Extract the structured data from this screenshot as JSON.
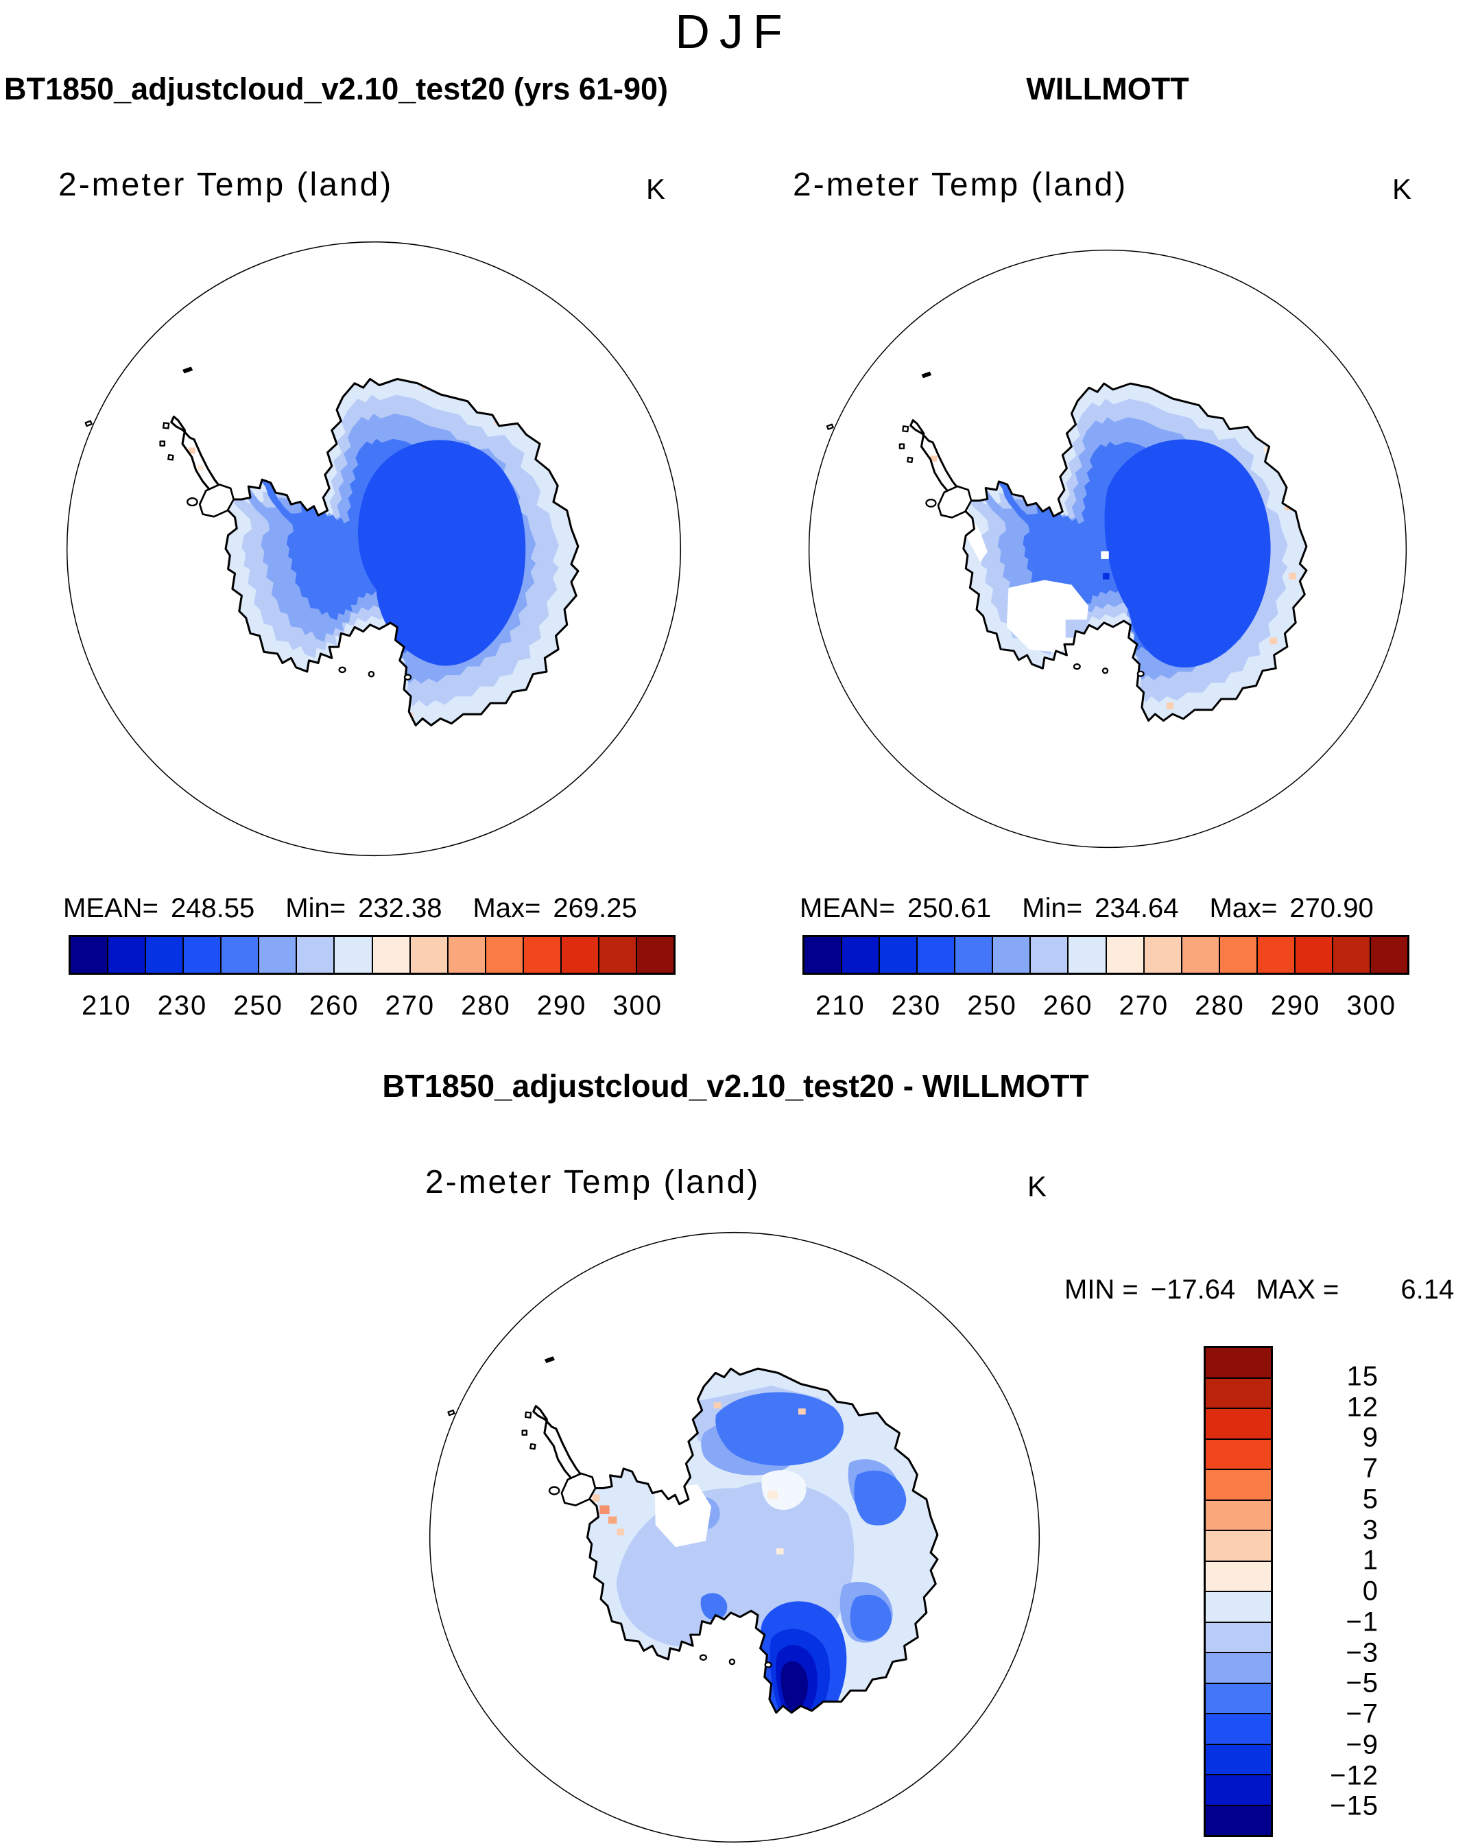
{
  "page": {
    "season_title": "DJF"
  },
  "panels": {
    "left": {
      "header": "BT1850_adjustcloud_v2.10_test20 (yrs 61-90)",
      "subtitle": "2-meter Temp (land)",
      "units": "K",
      "stats": {
        "mean_label": "MEAN=",
        "mean": "248.55",
        "min_label": "Min=",
        "min": "232.38",
        "max_label": "Max=",
        "max": "269.25"
      },
      "colorbar_ticks": [
        "210",
        "230",
        "250",
        "260",
        "270",
        "280",
        "290",
        "300"
      ]
    },
    "right": {
      "header": "WILLMOTT",
      "subtitle": "2-meter Temp (land)",
      "units": "K",
      "stats": {
        "mean_label": "MEAN=",
        "mean": "250.61",
        "min_label": "Min=",
        "min": "234.64",
        "max_label": "Max=",
        "max": "270.90"
      },
      "colorbar_ticks": [
        "210",
        "230",
        "250",
        "260",
        "270",
        "280",
        "290",
        "300"
      ]
    },
    "diff": {
      "header": "BT1850_adjustcloud_v2.10_test20 - WILLMOTT",
      "subtitle": "2-meter Temp (land)",
      "units": "K",
      "stats": {
        "min_label": "MIN =",
        "min": "−17.64",
        "max_label": "MAX =",
        "max": "6.14"
      },
      "colorbar_ticks": [
        "15",
        "12",
        "9",
        "7",
        "5",
        "3",
        "1",
        "0",
        "−1",
        "−3",
        "−5",
        "−7",
        "−9",
        "−12",
        "−15"
      ]
    }
  },
  "palette_blue_to_red": [
    "#00008C",
    "#0014C8",
    "#0533E4",
    "#1E51F5",
    "#4377F8",
    "#86A8F7",
    "#B8CCF7",
    "#DBE9FB",
    "#FDEBDC",
    "#FBCFB2",
    "#FBA77C",
    "#F97B46",
    "#F0481C",
    "#DE2D0E",
    "#BB230B",
    "#8E0E08"
  ],
  "chart_data": {
    "type": "heatmap",
    "figure": "South polar stereographic maps of Antarctic 2-meter land temperature, season DJF; model vs observations and difference",
    "season": "DJF",
    "variable": "2-meter Temp (land)",
    "units": "K",
    "panels": [
      {
        "name": "model",
        "title": "BT1850_adjustcloud_v2.10_test20 (yrs 61-90)",
        "mean": 248.55,
        "min": 232.38,
        "max": 269.25,
        "contour_levels": [
          210,
          220,
          230,
          240,
          250,
          255,
          260,
          265,
          270,
          275,
          280,
          285,
          290,
          295,
          300
        ],
        "colorbar_tick_labels": [
          210,
          230,
          250,
          260,
          270,
          280,
          290,
          300
        ],
        "legend_position": "below"
      },
      {
        "name": "obs",
        "title": "WILLMOTT",
        "mean": 250.61,
        "min": 234.64,
        "max": 270.9,
        "contour_levels": [
          210,
          220,
          230,
          240,
          250,
          255,
          260,
          265,
          270,
          275,
          280,
          285,
          290,
          295,
          300
        ],
        "colorbar_tick_labels": [
          210,
          230,
          250,
          260,
          270,
          280,
          290,
          300
        ],
        "legend_position": "below"
      },
      {
        "name": "difference",
        "title": "BT1850_adjustcloud_v2.10_test20 - WILLMOTT",
        "min": -17.64,
        "max": 6.14,
        "contour_levels": [
          -15,
          -12,
          -9,
          -7,
          -5,
          -3,
          -1,
          0,
          1,
          3,
          5,
          7,
          9,
          12,
          15
        ],
        "colorbar_tick_labels": [
          15,
          12,
          9,
          7,
          5,
          3,
          1,
          0,
          -1,
          -3,
          -5,
          -7,
          -9,
          -12,
          -15
        ],
        "legend_position": "right"
      }
    ],
    "palette_blue_to_red": [
      "#00008C",
      "#0014C8",
      "#0533E4",
      "#1E51F5",
      "#4377F8",
      "#86A8F7",
      "#B8CCF7",
      "#DBE9FB",
      "#FDEBDC",
      "#FBCFB2",
      "#FBA77C",
      "#F97B46",
      "#F0481C",
      "#DE2D0E",
      "#BB230B",
      "#8E0E08"
    ]
  }
}
